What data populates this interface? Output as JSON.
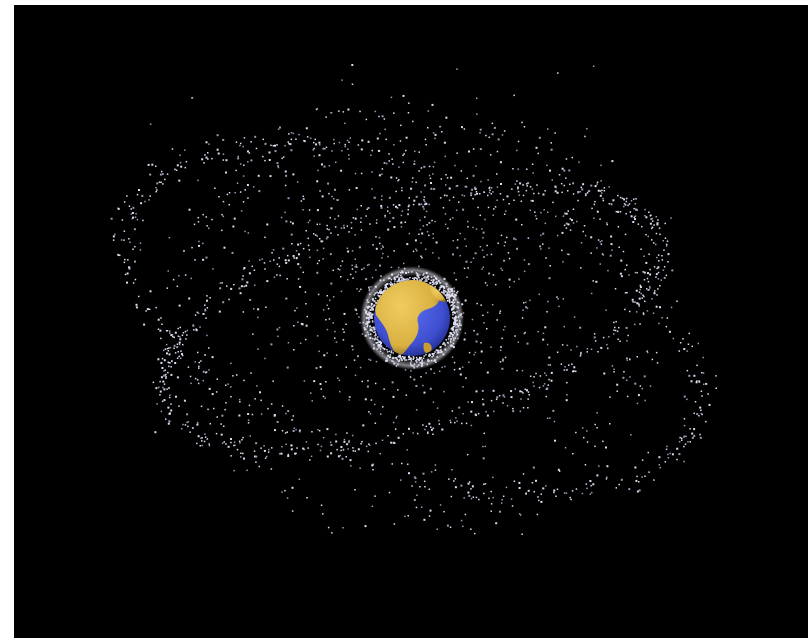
{
  "scene": {
    "subject": "earth-with-orbital-debris",
    "colors": {
      "background": "#000000",
      "page_border": "#ffffff",
      "debris": "#dcdcf0",
      "debris_dim": "#9a9ab4",
      "ocean": "#3f4fd0",
      "ocean_dark": "#1e2a8a",
      "land": "#d8b040",
      "land_dark": "#8a6a1c",
      "halo": "#e8e8f4"
    }
  }
}
